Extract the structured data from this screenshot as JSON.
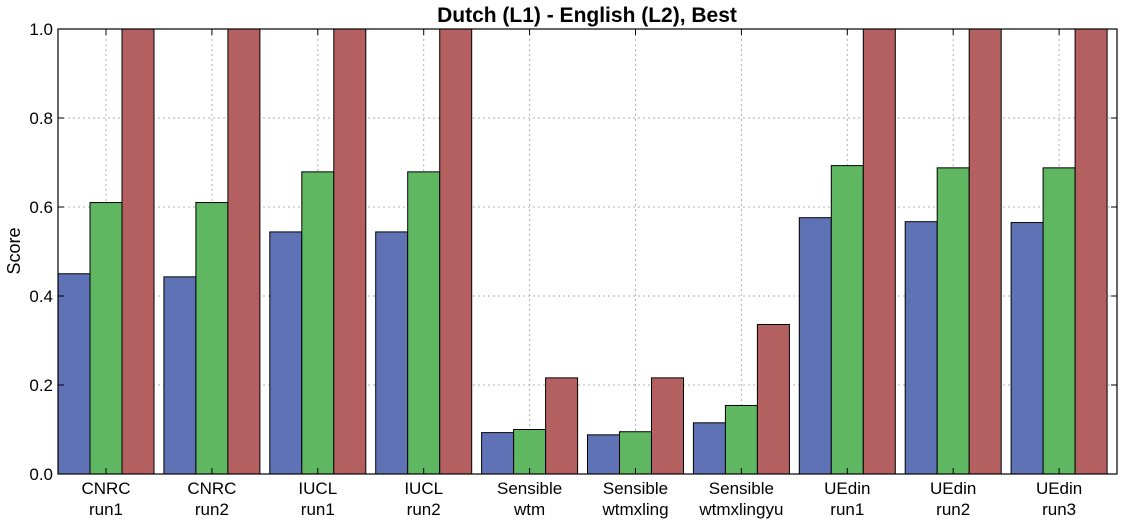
{
  "chart_data": {
    "type": "bar",
    "title": "Dutch (L1) - English (L2), Best",
    "xlabel": "",
    "ylabel": "Score",
    "ylim": [
      0.0,
      1.0
    ],
    "yticks": [
      "0.0",
      "0.2",
      "0.4",
      "0.6",
      "0.8",
      "1.0"
    ],
    "grid": true,
    "categories": [
      [
        "CNRC",
        "run1"
      ],
      [
        "CNRC",
        "run2"
      ],
      [
        "IUCL",
        "run1"
      ],
      [
        "IUCL",
        "run2"
      ],
      [
        "Sensible",
        "wtm"
      ],
      [
        "Sensible",
        "wtmxling"
      ],
      [
        "Sensible",
        "wtmxlingyu"
      ],
      [
        "UEdin",
        "run1"
      ],
      [
        "UEdin",
        "run2"
      ],
      [
        "UEdin",
        "run3"
      ]
    ],
    "series": [
      {
        "color": "#5f72b5",
        "values": [
          0.45,
          0.443,
          0.544,
          0.544,
          0.093,
          0.088,
          0.115,
          0.576,
          0.567,
          0.565
        ]
      },
      {
        "color": "#5fb762",
        "values": [
          0.61,
          0.61,
          0.679,
          0.679,
          0.1,
          0.095,
          0.154,
          0.693,
          0.688,
          0.688
        ]
      },
      {
        "color": "#b56060",
        "values": [
          1.0,
          1.0,
          1.0,
          1.0,
          0.216,
          0.216,
          0.336,
          1.0,
          1.0,
          1.0
        ]
      }
    ]
  }
}
